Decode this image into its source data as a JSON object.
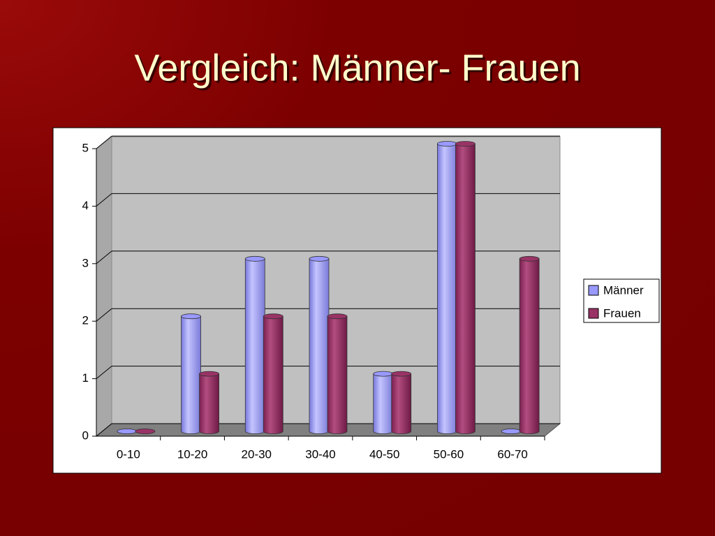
{
  "chart_data": {
    "type": "bar3d",
    "title": "Vergleich: Männer- Frauen",
    "categories": [
      "0-10",
      "10-20",
      "20-30",
      "30-40",
      "40-50",
      "50-60",
      "60-70"
    ],
    "series": [
      {
        "name": "Männer",
        "color": "#9999ff",
        "values": [
          0,
          2,
          3,
          3,
          1,
          5,
          0
        ]
      },
      {
        "name": "Frauen",
        "color": "#993366",
        "values": [
          0,
          1,
          2,
          2,
          1,
          5,
          3
        ]
      }
    ],
    "ylim": [
      0,
      5
    ],
    "yticks": [
      0,
      1,
      2,
      3,
      4,
      5
    ],
    "grid": true,
    "legend": "right"
  }
}
